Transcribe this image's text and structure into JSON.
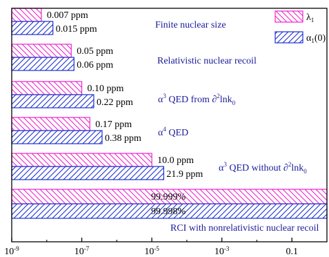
{
  "chart_data": {
    "type": "bar",
    "orientation": "horizontal",
    "x_scale": "log",
    "xlim": [
      1e-09,
      1
    ],
    "xticks": [
      {
        "value": 1e-09,
        "label": "10-9"
      },
      {
        "value": 1e-07,
        "label": "10-7"
      },
      {
        "value": 1e-05,
        "label": "10-5"
      },
      {
        "value": 0.001,
        "label": "10-3"
      },
      {
        "value": 0.1,
        "label": "0.1"
      }
    ],
    "legend_position": "top-right",
    "grid": false,
    "colors": {
      "lambda": "#ee22cc",
      "alpha": "#1a2fd0",
      "label_text": "#1a1a9a"
    },
    "series": [
      {
        "name": "λ1",
        "key": "lambda",
        "hatch": "backslash"
      },
      {
        "name": "α1(0)",
        "key": "alpha",
        "hatch": "slash"
      }
    ],
    "groups": [
      {
        "label": "Finite nuclear size",
        "lambda": 7e-09,
        "alpha": 1.5e-08,
        "lambda_label": "0.007 ppm",
        "alpha_label": "0.015 ppm"
      },
      {
        "label": "Relativistic nuclear recoil",
        "lambda": 5e-08,
        "alpha": 6e-08,
        "lambda_label": "0.05 ppm",
        "alpha_label": "0.06 ppm"
      },
      {
        "label_parts": [
          "α",
          "3",
          " QED from ∂",
          "2",
          "lnk",
          "0"
        ],
        "lambda": 1e-07,
        "alpha": 2.2e-07,
        "lambda_label": "0.10 ppm",
        "alpha_label": "0.22 ppm"
      },
      {
        "label_parts": [
          "α",
          "4",
          " QED"
        ],
        "lambda": 1.7e-07,
        "alpha": 3.8e-07,
        "lambda_label": "0.17 ppm",
        "alpha_label": "0.38 ppm"
      },
      {
        "label_parts": [
          "α",
          "3",
          " QED without ∂",
          "2",
          "lnk",
          "0"
        ],
        "lambda": 1e-05,
        "alpha": 2.19e-05,
        "lambda_label": "10.0 ppm",
        "alpha_label": "21.9 ppm"
      },
      {
        "label": "RCI with nonrelativistic nuclear recoil",
        "lambda": 0.99999,
        "alpha": 0.99998,
        "lambda_label": "99.999%",
        "alpha_label": "99.998%"
      }
    ]
  }
}
